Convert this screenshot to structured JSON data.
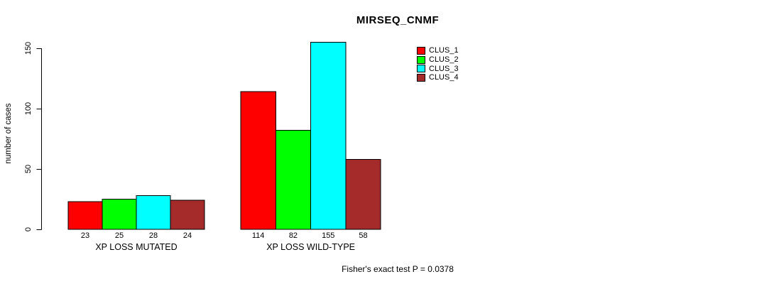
{
  "title": "MIRSEQ_CNMF",
  "ylabel": "number of cases",
  "footer": "Fisher's exact test P = 0.0378",
  "chart_data": {
    "type": "bar",
    "title": "MIRSEQ_CNMF",
    "xlabel": "",
    "ylabel": "number of cases",
    "categories": [
      "XP LOSS MUTATED",
      "XP LOSS WILD-TYPE"
    ],
    "series": [
      {
        "name": "CLUS_1",
        "color": "#FF0000",
        "values": [
          23,
          114
        ]
      },
      {
        "name": "CLUS_2",
        "color": "#00FF00",
        "values": [
          25,
          82
        ]
      },
      {
        "name": "CLUS_3",
        "color": "#00FFFF",
        "values": [
          28,
          155
        ]
      },
      {
        "name": "CLUS_4",
        "color": "#A52A2A",
        "values": [
          24,
          58
        ]
      }
    ],
    "bar_value_labels": [
      [
        23,
        25,
        28,
        24
      ],
      [
        114,
        82,
        155,
        58
      ]
    ],
    "yticks": [
      0,
      50,
      100,
      150
    ],
    "ylim": [
      0,
      155
    ],
    "grid": false,
    "legend_position": "top-right",
    "bar_border_color": "#000000",
    "annotation": "Fisher's exact test P = 0.0378"
  }
}
